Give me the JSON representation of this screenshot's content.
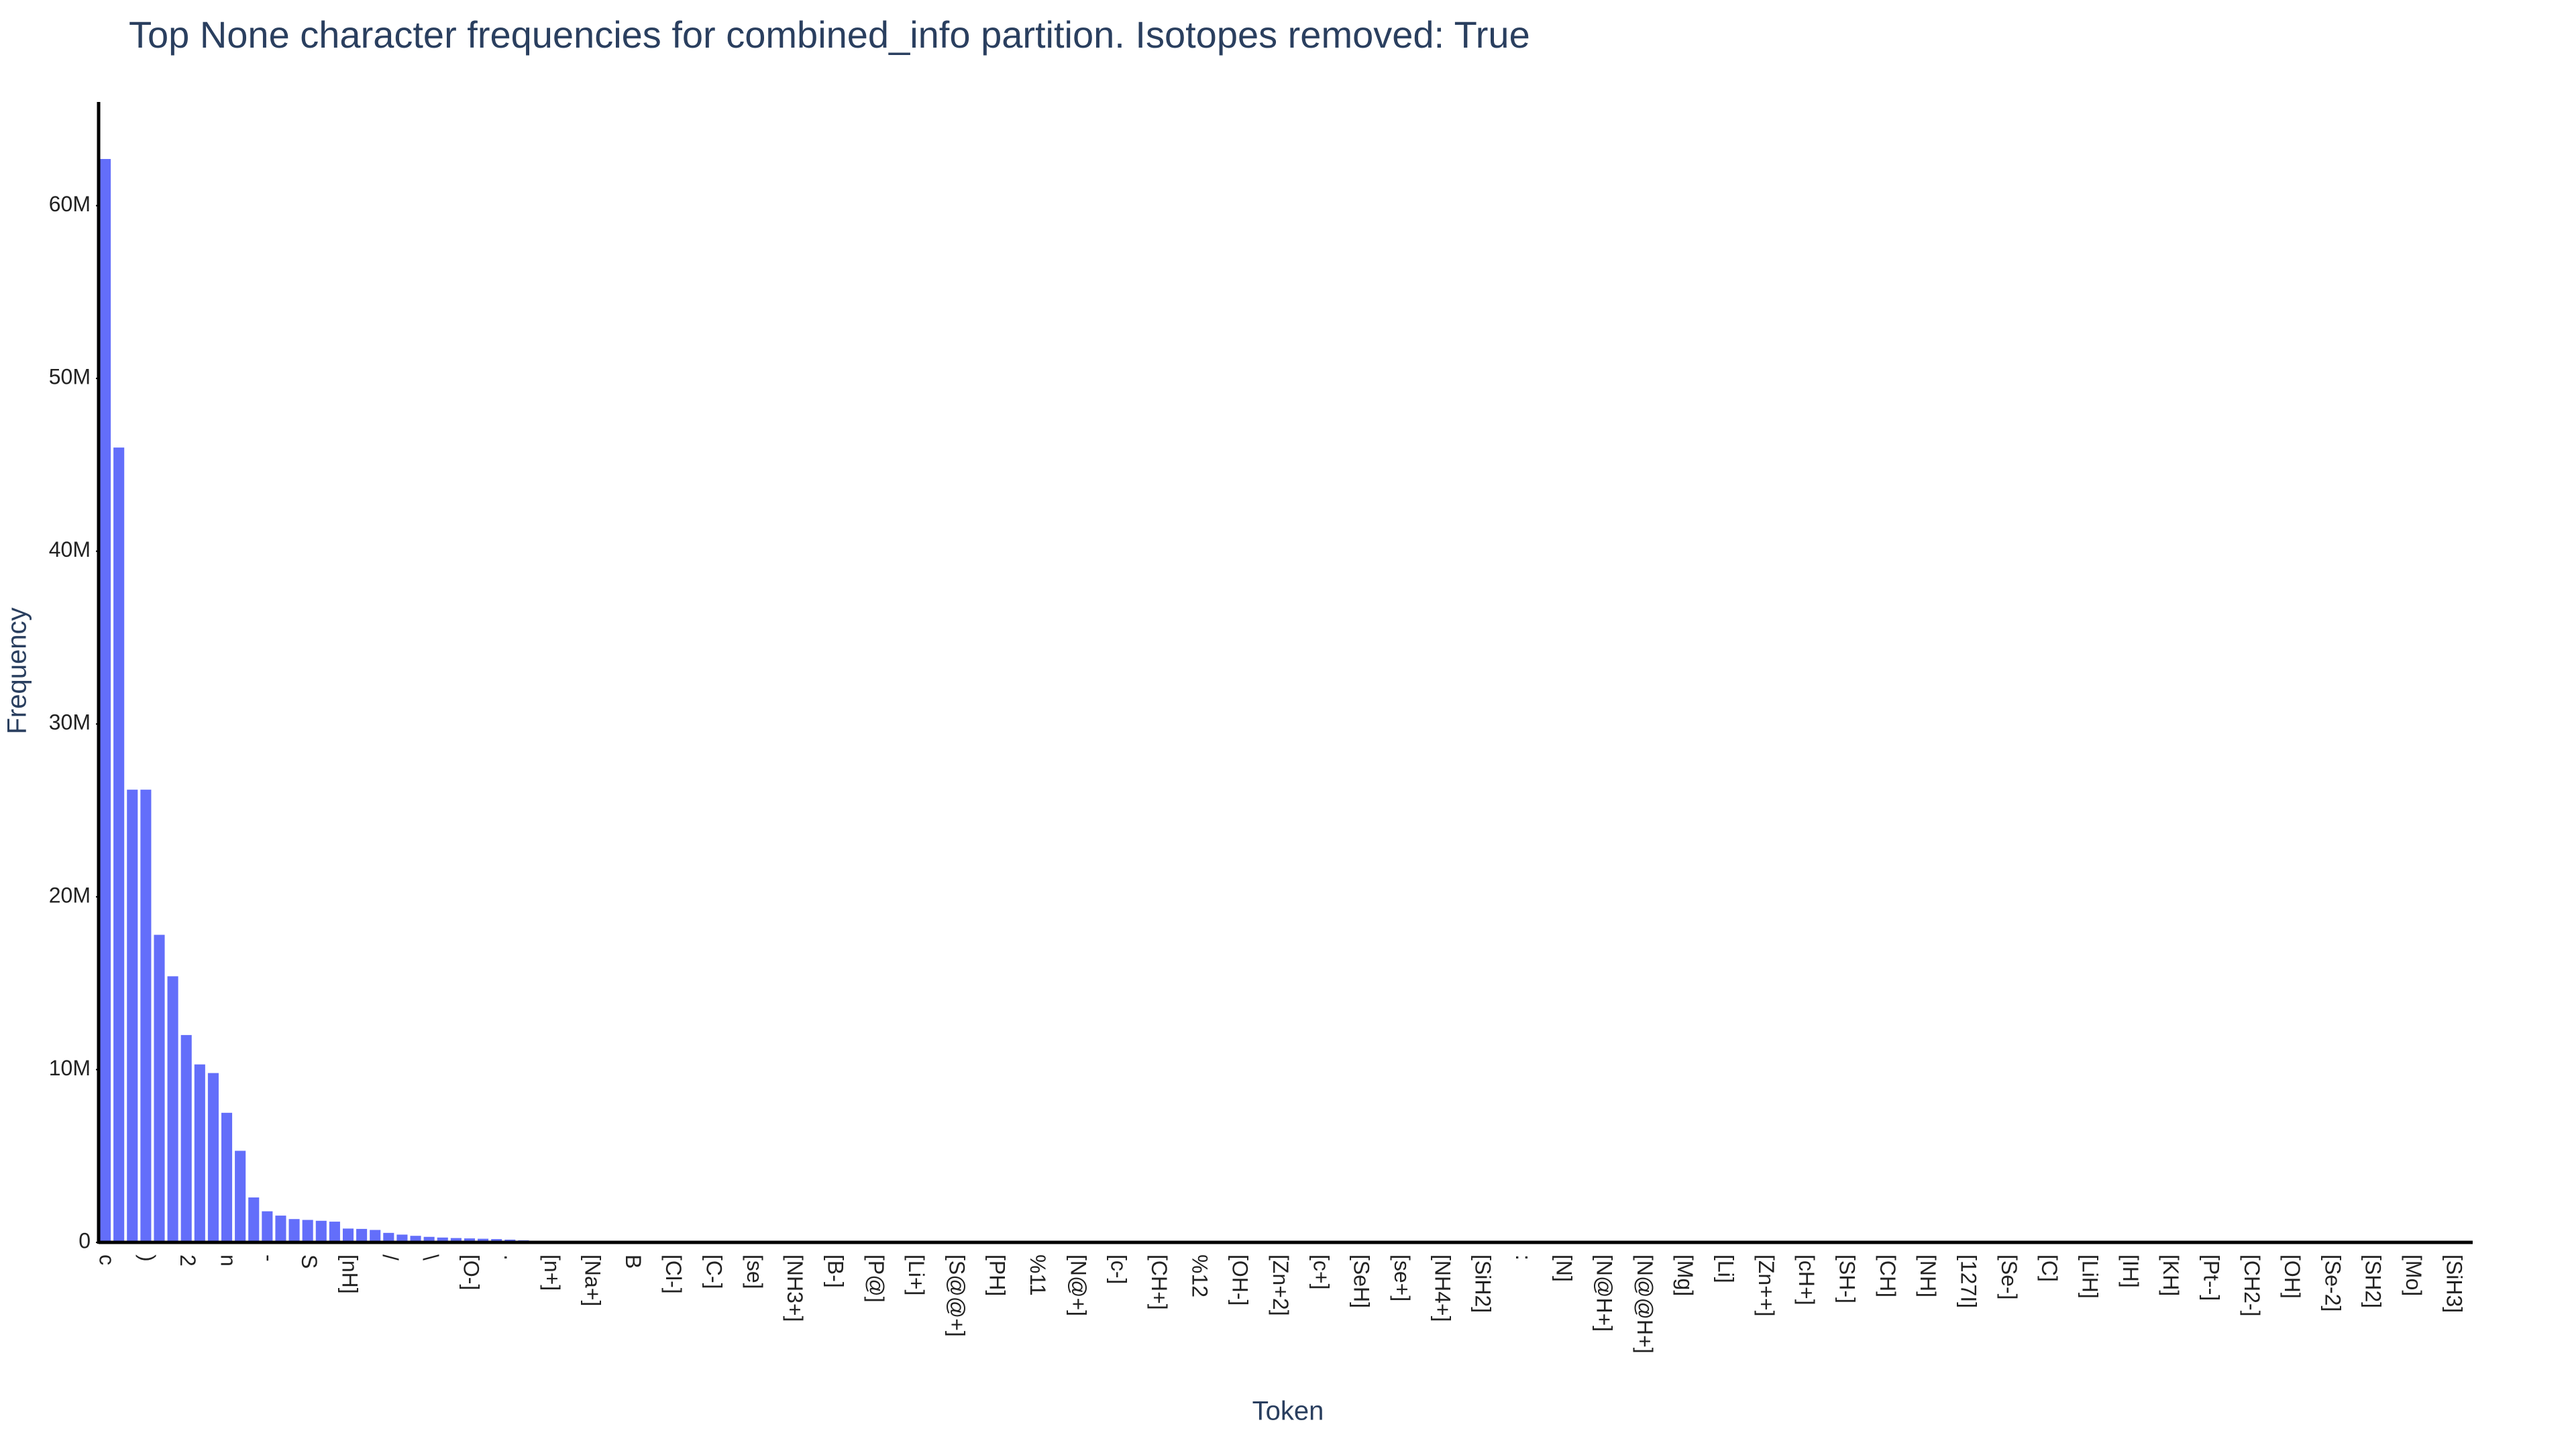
{
  "chart_data": {
    "type": "bar",
    "title": "Top None character frequencies for combined_info partition. Isotopes removed: True",
    "x_label": "Token",
    "y_label": "Frequency",
    "color": "#636efa",
    "categories": [
      "c",
      null,
      null,
      ")",
      null,
      null,
      "2",
      null,
      null,
      "n",
      null,
      null,
      "-",
      null,
      null,
      "S",
      null,
      null,
      "[nH]",
      null,
      null,
      "/",
      null,
      null,
      "\\",
      null,
      null,
      "[O-]",
      null,
      null,
      ".",
      null,
      null,
      "[n+]",
      null,
      null,
      "[Na+]",
      null,
      null,
      "B",
      null,
      null,
      "[Cl-]",
      null,
      null,
      "[C-]",
      null,
      null,
      "[se]",
      null,
      null,
      "[NH3+]",
      null,
      null,
      "[B-]",
      null,
      null,
      "[P@]",
      null,
      null,
      "[Li+]",
      null,
      null,
      "[S@@+]",
      null,
      null,
      "[PH]",
      null,
      null,
      "%11",
      null,
      null,
      "[N@+]",
      null,
      null,
      "[c-]",
      null,
      null,
      "[CH+]",
      null,
      null,
      "%12",
      null,
      null,
      "[OH-]",
      null,
      null,
      "[Zn+2]",
      null,
      null,
      "[c+]",
      null,
      null,
      "[SeH]",
      null,
      null,
      "[se+]",
      null,
      null,
      "[NH4+]",
      null,
      null,
      "[SiH2]",
      null,
      null,
      ":",
      null,
      null,
      "[N]",
      null,
      null,
      "[N@H+]",
      null,
      null,
      "[N@@H+]",
      null,
      null,
      "[Mg]",
      null,
      null,
      "[Li]",
      null,
      null,
      "[Zn++]",
      null,
      null,
      "[cH+]",
      null,
      null,
      "[SH-]",
      null,
      null,
      "[CH]",
      null,
      null,
      "[NH]",
      null,
      null,
      "[127I]",
      null,
      null,
      "[Se-]",
      null,
      null,
      "[C]",
      null,
      null,
      "[LiH]",
      null,
      null,
      "[IH]",
      null,
      null,
      "[KH]",
      null,
      null,
      "[Pt--]",
      null,
      null,
      "[CH2-]",
      null,
      null,
      "[OH]",
      null,
      null,
      "[Se-2]",
      null,
      null,
      "[SH2]",
      null,
      null,
      "[Mo]",
      null,
      null,
      "[SiH3]",
      null
    ],
    "values": [
      62700000,
      46000000,
      26200000,
      26200000,
      17800000,
      15400000,
      12000000,
      10300000,
      9800000,
      7500000,
      5300000,
      2600000,
      1800000,
      1550000,
      1350000,
      1300000,
      1250000,
      1200000,
      800000,
      780000,
      720000,
      550000,
      450000,
      380000,
      320000,
      280000,
      250000,
      230000,
      210000,
      190000,
      160000,
      120000,
      90000,
      70000,
      55000,
      45000,
      38000,
      32000,
      27000,
      23000,
      20000,
      18000,
      16000,
      14500,
      13000,
      12000,
      11000,
      10000,
      9200,
      8500,
      7800,
      7200,
      6600,
      6100,
      5600,
      5200,
      4800,
      4400,
      4100,
      3800,
      3500,
      3300,
      3100,
      2900,
      2700,
      2500,
      2350,
      2200,
      2050,
      1900,
      1800,
      1700,
      1600,
      1500,
      1420,
      1340,
      1260,
      1190,
      1120,
      1060,
      1000,
      950,
      900,
      850,
      800,
      760,
      720,
      680,
      640,
      610,
      580,
      550,
      520,
      490,
      470,
      450,
      430,
      410,
      390,
      370,
      350,
      335,
      320,
      305,
      290,
      275,
      260,
      250,
      240,
      230,
      220,
      210,
      200,
      190,
      180,
      172,
      164,
      156,
      148,
      140,
      133,
      126,
      120,
      114,
      108,
      102,
      97,
      92,
      87,
      83,
      79,
      75,
      71,
      68,
      65,
      62,
      59,
      56,
      53,
      50,
      48,
      46,
      44,
      42,
      40,
      38,
      36,
      34,
      32,
      30,
      29,
      28,
      27,
      26,
      25,
      24,
      23,
      22,
      21,
      20,
      19,
      18,
      17,
      16,
      15,
      14,
      13,
      12,
      11,
      10,
      9,
      8,
      7,
      6,
      5,
      4
    ],
    "ylim": [
      0,
      66000000
    ],
    "yticks": [
      0,
      {
        "value": 10000000,
        "label": "10M"
      },
      {
        "value": 20000000,
        "label": "20M"
      },
      {
        "value": 30000000,
        "label": "30M"
      },
      {
        "value": 40000000,
        "label": "40M"
      },
      {
        "value": 50000000,
        "label": "50M"
      },
      {
        "value": 60000000,
        "label": "60M"
      }
    ]
  }
}
